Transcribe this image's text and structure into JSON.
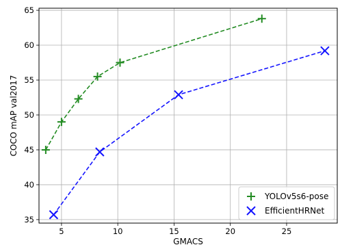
{
  "chart_data": {
    "type": "line",
    "xlabel": "GMACS",
    "ylabel": "COCO mAP val2017",
    "xlim": [
      3.0,
      29.5
    ],
    "ylim": [
      34.5,
      65.3
    ],
    "xticks": [
      5,
      10,
      15,
      20,
      25
    ],
    "yticks": [
      35,
      40,
      45,
      50,
      55,
      60,
      65
    ],
    "grid": true,
    "legend_position": "bottom-right",
    "series": [
      {
        "name": "YOLOv5s6-pose",
        "color": "#228B22",
        "marker": "plus",
        "linestyle": "dashed",
        "x": [
          3.6,
          5.0,
          6.5,
          8.2,
          10.2,
          22.8
        ],
        "y": [
          45.0,
          49.0,
          52.3,
          55.5,
          57.5,
          63.8
        ]
      },
      {
        "name": "EfficientHRNet",
        "color": "#1414FF",
        "marker": "x",
        "linestyle": "dashed",
        "x": [
          4.3,
          8.4,
          15.4,
          28.4
        ],
        "y": [
          35.7,
          44.7,
          52.9,
          59.2
        ]
      }
    ]
  }
}
